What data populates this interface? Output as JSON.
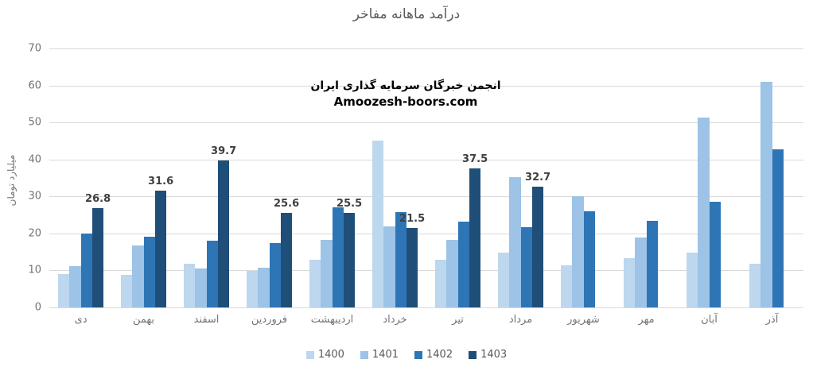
{
  "title": "درآمد ماهانه مفاخر",
  "watermark": {
    "line1": "انجمن خبرگان سرمایه گذاری ایران",
    "line2": "Amoozesh-boors.com"
  },
  "chart_data": {
    "type": "bar",
    "title": "درآمد ماهانه مفاخر",
    "xlabel": "",
    "ylabel": "میلیارد تومان",
    "ylim": [
      0,
      70
    ],
    "ytick_step": 10,
    "grid": "horizontal",
    "grid_color": "#D9D9D9",
    "legend_position": "bottom",
    "categories": [
      "دی",
      "بهمن",
      "اسفند",
      "فروردین",
      "اردیبهشت",
      "خرداد",
      "تیر",
      "مرداد",
      "شهریور",
      "مهر",
      "آبان",
      "آذر"
    ],
    "series": [
      {
        "name": "1400",
        "color": "#BDD7EE",
        "values": [
          9.0,
          8.8,
          11.8,
          9.8,
          12.8,
          45.2,
          12.9,
          14.8,
          11.3,
          13.4,
          14.8,
          11.8
        ]
      },
      {
        "name": "1401",
        "color": "#9DC3E6",
        "values": [
          11.2,
          16.7,
          10.5,
          10.7,
          18.2,
          21.8,
          18.2,
          35.2,
          30.0,
          18.9,
          51.3,
          61.0
        ]
      },
      {
        "name": "1402",
        "color": "#2E75B6",
        "values": [
          20.0,
          19.1,
          18.0,
          17.3,
          27.0,
          25.7,
          23.2,
          21.7,
          26.0,
          23.4,
          28.5,
          42.8
        ]
      },
      {
        "name": "1403",
        "color": "#1F4E79",
        "data_labels": true,
        "values": [
          26.8,
          31.6,
          39.7,
          25.6,
          25.5,
          21.5,
          37.5,
          32.7,
          null,
          null,
          null,
          null
        ]
      }
    ]
  }
}
